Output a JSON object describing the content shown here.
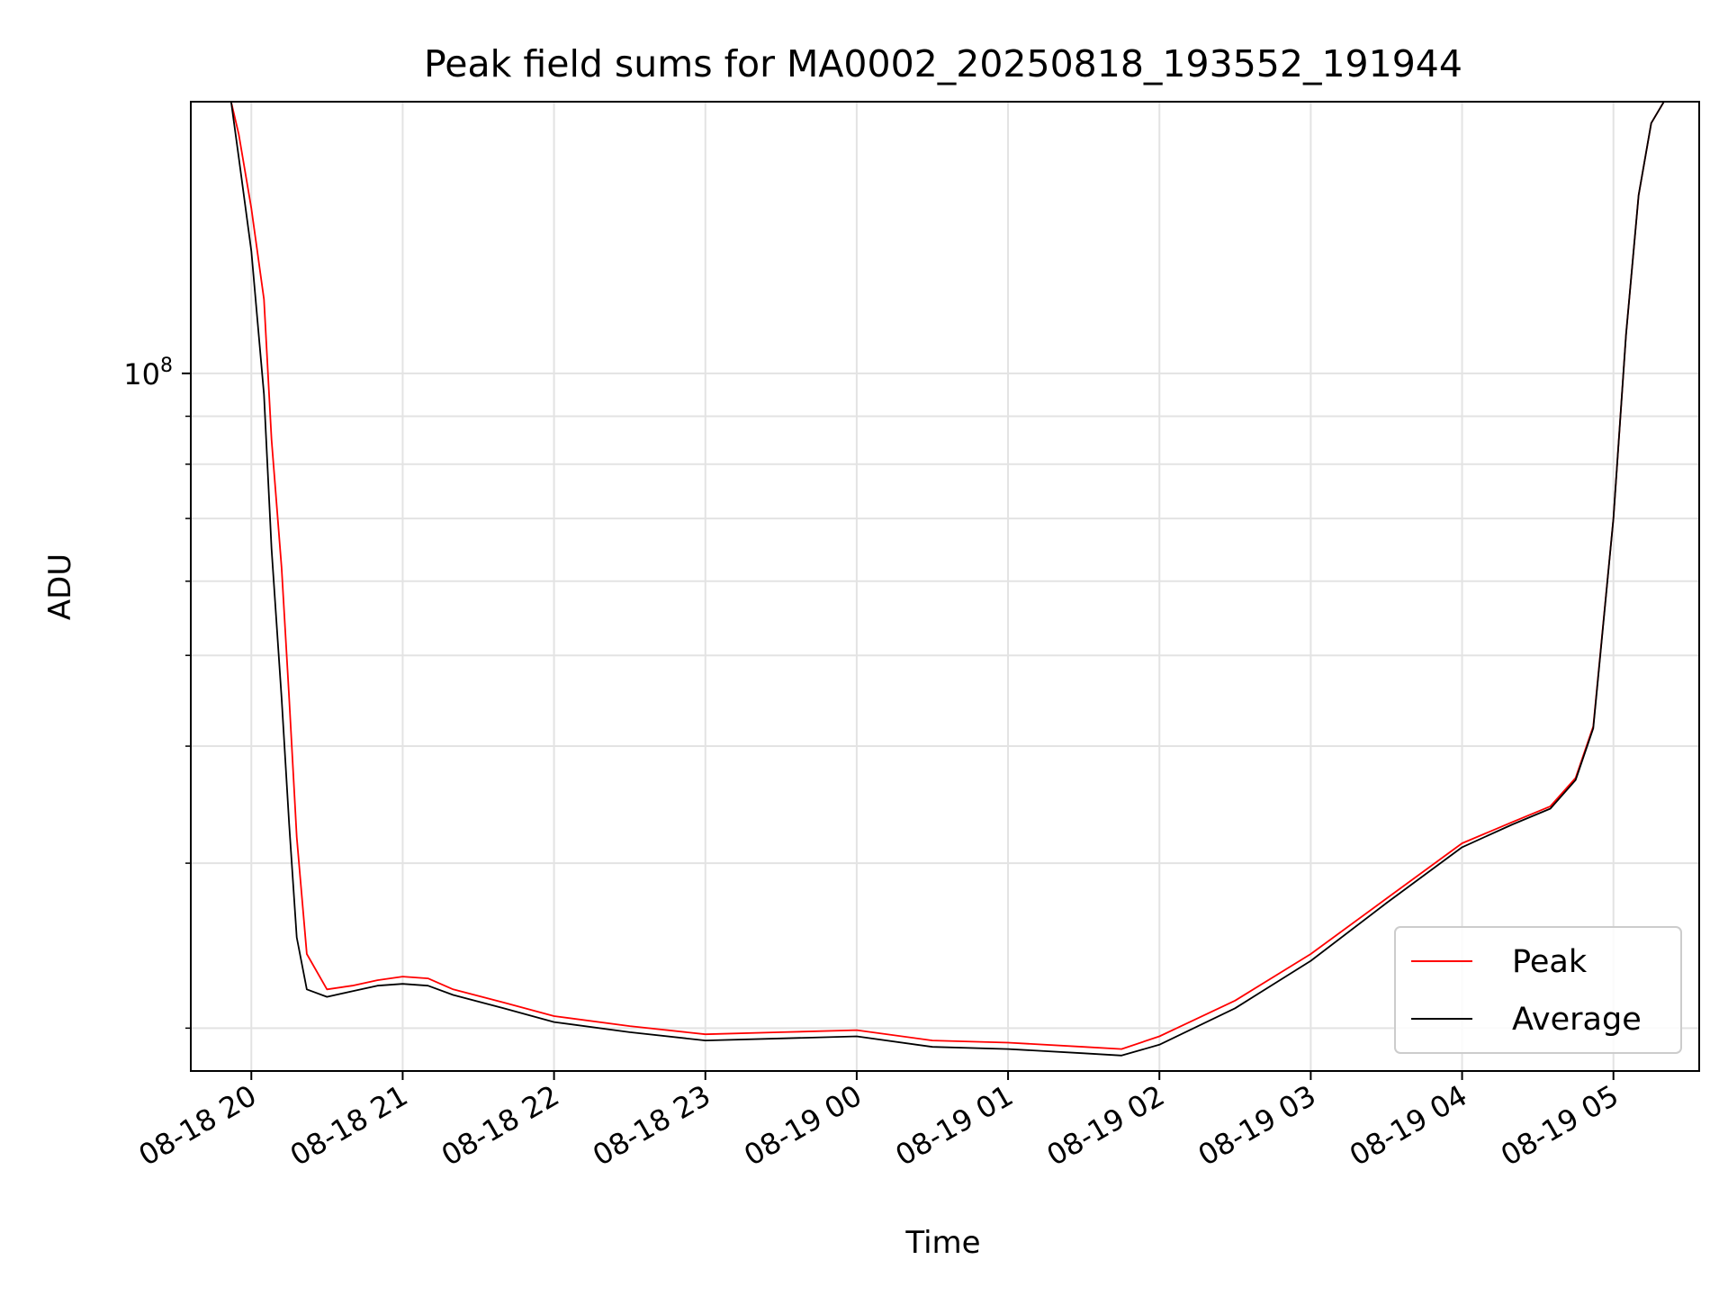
{
  "chart_data": {
    "type": "line",
    "title": "Peak field sums for MA0002_20250818_193552_191944",
    "xlabel": "Time",
    "ylabel": "ADU",
    "y_scale": "log",
    "ylim": [
      18000000,
      195000000
    ],
    "xlim": [
      "08-18 19:36",
      "08-19 05:34"
    ],
    "x_ticks": [
      "08-18 20",
      "08-18 21",
      "08-18 22",
      "08-18 23",
      "08-19 00",
      "08-19 01",
      "08-19 02",
      "08-19 03",
      "08-19 04",
      "08-19 05"
    ],
    "y_ticks": [
      {
        "value": 100000000,
        "label": "10^8",
        "base": "10",
        "exponent": "8"
      }
    ],
    "grid": true,
    "legend": {
      "position": "lower right",
      "entries": [
        "Peak",
        "Average"
      ]
    },
    "series": [
      {
        "name": "Peak",
        "color": "#ff0000",
        "x": [
          "08-18 19:36",
          "08-18 19:52",
          "08-18 19:55",
          "08-18 20:00",
          "08-18 20:05",
          "08-18 20:08",
          "08-18 20:12",
          "08-18 20:15",
          "08-18 20:18",
          "08-18 20:22",
          "08-18 20:30",
          "08-18 20:40",
          "08-18 20:50",
          "08-18 21:00",
          "08-18 21:10",
          "08-18 21:20",
          "08-18 21:40",
          "08-18 22:00",
          "08-18 22:30",
          "08-18 23:00",
          "08-18 23:30",
          "08-19 00:00",
          "08-19 00:30",
          "08-19 01:00",
          "08-19 01:30",
          "08-19 01:45",
          "08-19 02:00",
          "08-19 02:30",
          "08-19 03:00",
          "08-19 03:30",
          "08-19 04:00",
          "08-19 04:20",
          "08-19 04:35",
          "08-19 04:45",
          "08-19 04:52",
          "08-19 05:00",
          "08-19 05:05",
          "08-19 05:10",
          "08-19 05:15",
          "08-19 05:20",
          "08-19 05:34"
        ],
        "y": [
          195000000,
          195000000,
          180000000,
          150000000,
          120000000,
          85000000,
          62000000,
          45000000,
          32000000,
          24000000,
          22000000,
          22200000,
          22500000,
          22700000,
          22600000,
          22000000,
          21300000,
          20600000,
          20100000,
          19700000,
          19800000,
          19900000,
          19400000,
          19300000,
          19100000,
          19000000,
          19600000,
          21400000,
          24000000,
          27500000,
          31500000,
          33200000,
          34500000,
          37000000,
          42000000,
          70000000,
          110000000,
          155000000,
          185000000,
          195000000,
          195000000
        ]
      },
      {
        "name": "Average",
        "color": "#000000",
        "x": [
          "08-18 19:36",
          "08-18 19:52",
          "08-18 19:55",
          "08-18 20:00",
          "08-18 20:05",
          "08-18 20:08",
          "08-18 20:12",
          "08-18 20:15",
          "08-18 20:18",
          "08-18 20:22",
          "08-18 20:30",
          "08-18 20:40",
          "08-18 20:50",
          "08-18 21:00",
          "08-18 21:10",
          "08-18 21:20",
          "08-18 21:40",
          "08-18 22:00",
          "08-18 22:30",
          "08-18 23:00",
          "08-18 23:30",
          "08-19 00:00",
          "08-19 00:30",
          "08-19 01:00",
          "08-19 01:30",
          "08-19 01:45",
          "08-19 02:00",
          "08-19 02:30",
          "08-19 03:00",
          "08-19 03:30",
          "08-19 04:00",
          "08-19 04:20",
          "08-19 04:35",
          "08-19 04:45",
          "08-19 04:52",
          "08-19 05:00",
          "08-19 05:05",
          "08-19 05:10",
          "08-19 05:15",
          "08-19 05:20",
          "08-19 05:34"
        ],
        "y": [
          195000000,
          195000000,
          170000000,
          135000000,
          95000000,
          65000000,
          45000000,
          33000000,
          25000000,
          22000000,
          21600000,
          21900000,
          22200000,
          22300000,
          22200000,
          21700000,
          21000000,
          20300000,
          19800000,
          19400000,
          19500000,
          19600000,
          19100000,
          19000000,
          18800000,
          18700000,
          19200000,
          21000000,
          23600000,
          27200000,
          31200000,
          33000000,
          34300000,
          36800000,
          41800000,
          70000000,
          110000000,
          155000000,
          185000000,
          195000000,
          195000000
        ]
      }
    ]
  }
}
